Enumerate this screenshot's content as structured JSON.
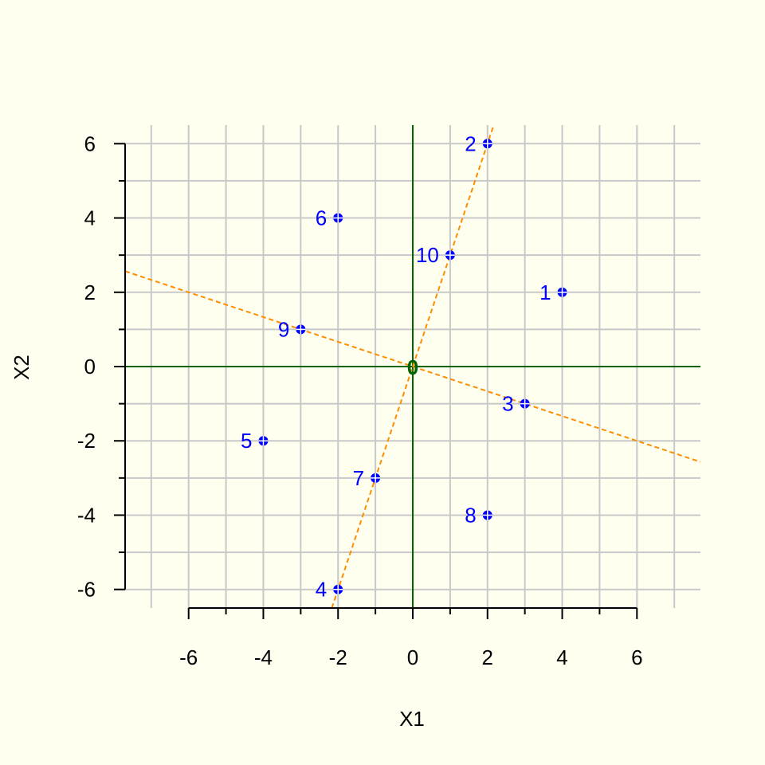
{
  "chart_data": {
    "type": "scatter",
    "title": "",
    "xlabel": "X1",
    "ylabel": "X2",
    "xlim": [
      -7.7,
      7.7
    ],
    "ylim": [
      -6.5,
      6.5
    ],
    "x_ticks": [
      -6,
      -4,
      -2,
      0,
      2,
      4,
      6
    ],
    "x_tick_labels": [
      "-6",
      "-4",
      "-2",
      "0",
      "2",
      "4",
      "6"
    ],
    "y_ticks": [
      -6,
      -4,
      -2,
      0,
      2,
      4,
      6
    ],
    "y_tick_labels": [
      "-6",
      "-4",
      "-2",
      "0",
      "2",
      "4",
      "6"
    ],
    "grid": true,
    "grid_step": 1,
    "points": [
      {
        "label": "1",
        "x": 4,
        "y": 2
      },
      {
        "label": "2",
        "x": 2,
        "y": 6
      },
      {
        "label": "3",
        "x": 3,
        "y": -1
      },
      {
        "label": "4",
        "x": -2,
        "y": -6
      },
      {
        "label": "5",
        "x": -4,
        "y": -2
      },
      {
        "label": "6",
        "x": -2,
        "y": 4
      },
      {
        "label": "7",
        "x": -1,
        "y": -3
      },
      {
        "label": "8",
        "x": 2,
        "y": -4
      },
      {
        "label": "9",
        "x": -3,
        "y": 1
      },
      {
        "label": "10",
        "x": 1,
        "y": 3
      }
    ],
    "origin_marker": {
      "x": 0,
      "y": 0,
      "label": "0"
    },
    "reference_lines": [
      {
        "kind": "horizontal",
        "y": 0
      },
      {
        "kind": "vertical",
        "x": 0
      }
    ],
    "dashed_lines": [
      {
        "slope": 3.0,
        "intercept": 0
      },
      {
        "slope": -0.3333,
        "intercept": 0
      }
    ],
    "colors": {
      "background": "#fffff0",
      "grid": "#c8c8c8",
      "points": "#0000ff",
      "point_labels": "#0000ff",
      "reference_lines": "#006400",
      "dashed_lines": "#ff8c00",
      "origin_marker": "#006400",
      "axes": "#000000"
    }
  }
}
